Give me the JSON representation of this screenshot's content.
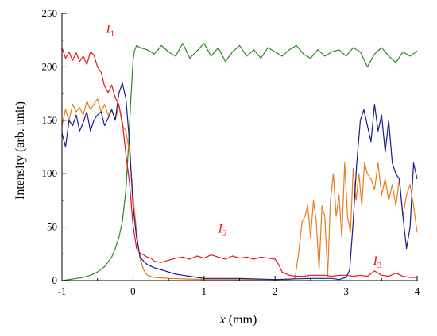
{
  "chart_data": {
    "type": "line",
    "xlabel": "x (mm)",
    "xlabel_var": "x",
    "xlabel_unit": " (mm)",
    "ylabel": "Intensity (arb. unit)",
    "xlim": [
      -1,
      4
    ],
    "ylim": [
      0,
      250
    ],
    "xticks": [
      -1,
      0,
      1,
      2,
      3,
      4
    ],
    "yticks": [
      0,
      50,
      100,
      150,
      200,
      250
    ],
    "xtick_labels": [
      "-1",
      "0",
      "1",
      "2",
      "3",
      "4"
    ],
    "ytick_labels": [
      "0",
      "50",
      "100",
      "150",
      "200",
      "250"
    ],
    "grid": false,
    "series": [
      {
        "label_main": "I",
        "label_sub": "1",
        "label_x": -0.38,
        "label_y": 232,
        "color": "#e8141c",
        "x": [
          -1.0,
          -0.95,
          -0.9,
          -0.85,
          -0.8,
          -0.75,
          -0.7,
          -0.65,
          -0.6,
          -0.55,
          -0.5,
          -0.45,
          -0.4,
          -0.35,
          -0.3,
          -0.25,
          -0.2,
          -0.15,
          -0.1,
          -0.05,
          0.0,
          0.05,
          0.1,
          0.15,
          0.2,
          0.25,
          0.3,
          0.4,
          0.5,
          0.6,
          0.7,
          0.8,
          0.9,
          1.0,
          1.1,
          1.2,
          1.3,
          1.4,
          1.5,
          1.6,
          1.7,
          1.8,
          1.9,
          2.0,
          2.05,
          2.1,
          2.2,
          2.3,
          2.4,
          2.5,
          2.6,
          2.7,
          2.8,
          2.9,
          3.0,
          3.1,
          3.2,
          3.3,
          3.4,
          3.5,
          3.6,
          3.7,
          3.8,
          3.9,
          4.0
        ],
        "y": [
          218,
          208,
          214,
          206,
          213,
          205,
          210,
          202,
          214,
          211,
          200,
          195,
          182,
          176,
          183,
          171,
          165,
          148,
          118,
          92,
          52,
          30,
          26,
          24,
          22,
          21,
          18,
          17,
          19,
          21,
          22,
          20,
          23,
          21,
          24,
          22,
          20,
          23,
          21,
          22,
          20,
          22,
          21,
          20,
          15,
          8,
          5,
          4,
          4,
          5,
          5,
          5,
          4,
          5,
          5,
          4,
          5,
          4,
          9,
          5,
          4,
          7,
          4,
          3,
          3
        ]
      },
      {
        "label_main": "I",
        "label_sub": "2",
        "label_x": 1.2,
        "label_y": 45,
        "color": "#e8141c",
        "x": [],
        "y": []
      },
      {
        "label_main": "I",
        "label_sub": "3",
        "label_x": 3.38,
        "label_y": 15,
        "color": "#e8141c",
        "x": [],
        "y": []
      },
      {
        "color": "#2a8a1e",
        "x": [
          -1.0,
          -0.9,
          -0.8,
          -0.7,
          -0.6,
          -0.5,
          -0.4,
          -0.3,
          -0.25,
          -0.2,
          -0.15,
          -0.1,
          -0.06,
          -0.03,
          0.0,
          0.02,
          0.05,
          0.1,
          0.2,
          0.3,
          0.4,
          0.5,
          0.6,
          0.7,
          0.8,
          0.9,
          1.0,
          1.1,
          1.2,
          1.3,
          1.4,
          1.5,
          1.6,
          1.7,
          1.8,
          1.9,
          2.0,
          2.1,
          2.2,
          2.3,
          2.4,
          2.5,
          2.6,
          2.7,
          2.8,
          2.9,
          3.0,
          3.1,
          3.2,
          3.3,
          3.4,
          3.5,
          3.6,
          3.7,
          3.8,
          3.9,
          4.0
        ],
        "y": [
          0,
          1,
          2,
          3,
          5,
          8,
          13,
          22,
          30,
          40,
          55,
          85,
          130,
          170,
          205,
          215,
          220,
          218,
          216,
          212,
          220,
          214,
          210,
          222,
          208,
          215,
          222,
          210,
          218,
          205,
          214,
          220,
          210,
          216,
          208,
          218,
          214,
          210,
          216,
          220,
          212,
          208,
          216,
          210,
          214,
          216,
          210,
          218,
          214,
          200,
          212,
          218,
          210,
          204,
          214,
          210,
          215
        ]
      },
      {
        "color": "#1c1c8c",
        "x": [
          -1.0,
          -0.95,
          -0.9,
          -0.85,
          -0.8,
          -0.75,
          -0.7,
          -0.65,
          -0.6,
          -0.55,
          -0.5,
          -0.45,
          -0.4,
          -0.35,
          -0.3,
          -0.25,
          -0.2,
          -0.15,
          -0.1,
          -0.05,
          0.0,
          0.05,
          0.1,
          0.15,
          0.2,
          0.3,
          0.4,
          0.5,
          0.6,
          0.7,
          0.8,
          0.9,
          1.0,
          1.5,
          2.0,
          2.5,
          2.8,
          2.9,
          3.0,
          3.05,
          3.1,
          3.15,
          3.2,
          3.25,
          3.3,
          3.35,
          3.4,
          3.45,
          3.5,
          3.55,
          3.6,
          3.65,
          3.7,
          3.75,
          3.8,
          3.85,
          3.9,
          3.95,
          4.0
        ],
        "y": [
          138,
          125,
          150,
          145,
          155,
          140,
          148,
          158,
          140,
          150,
          155,
          158,
          145,
          152,
          160,
          150,
          175,
          185,
          170,
          130,
          70,
          40,
          22,
          18,
          15,
          12,
          10,
          8,
          6,
          5,
          4,
          3,
          2,
          2,
          1,
          2,
          2,
          1,
          3,
          10,
          55,
          110,
          150,
          160,
          145,
          130,
          165,
          140,
          155,
          120,
          150,
          110,
          100,
          95,
          60,
          30,
          50,
          110,
          95
        ]
      },
      {
        "color": "#e87c1c",
        "x": [
          -1.0,
          -0.95,
          -0.9,
          -0.85,
          -0.8,
          -0.75,
          -0.7,
          -0.65,
          -0.6,
          -0.55,
          -0.5,
          -0.45,
          -0.4,
          -0.35,
          -0.3,
          -0.25,
          -0.2,
          -0.15,
          -0.1,
          -0.05,
          0.0,
          0.05,
          0.1,
          0.15,
          0.2,
          0.3,
          0.5,
          1.0,
          1.5,
          2.0,
          2.2,
          2.28,
          2.33,
          2.38,
          2.42,
          2.46,
          2.5,
          2.54,
          2.58,
          2.62,
          2.66,
          2.7,
          2.74,
          2.78,
          2.82,
          2.86,
          2.9,
          2.94,
          2.98,
          3.02,
          3.06,
          3.1,
          3.14,
          3.18,
          3.22,
          3.26,
          3.3,
          3.35,
          3.4,
          3.45,
          3.5,
          3.55,
          3.6,
          3.65,
          3.7,
          3.75,
          3.8,
          3.85,
          3.9,
          3.95,
          4.0
        ],
        "y": [
          145,
          160,
          150,
          165,
          158,
          162,
          155,
          168,
          160,
          165,
          170,
          158,
          165,
          155,
          160,
          150,
          165,
          145,
          140,
          120,
          80,
          45,
          20,
          10,
          5,
          3,
          2,
          1,
          1,
          1,
          1,
          2,
          25,
          55,
          60,
          70,
          40,
          75,
          55,
          10,
          70,
          60,
          5,
          75,
          100,
          60,
          80,
          40,
          110,
          60,
          45,
          105,
          75,
          100,
          70,
          110,
          100,
          95,
          85,
          110,
          80,
          95,
          75,
          90,
          70,
          95,
          60,
          80,
          90,
          70,
          45
        ]
      }
    ]
  }
}
